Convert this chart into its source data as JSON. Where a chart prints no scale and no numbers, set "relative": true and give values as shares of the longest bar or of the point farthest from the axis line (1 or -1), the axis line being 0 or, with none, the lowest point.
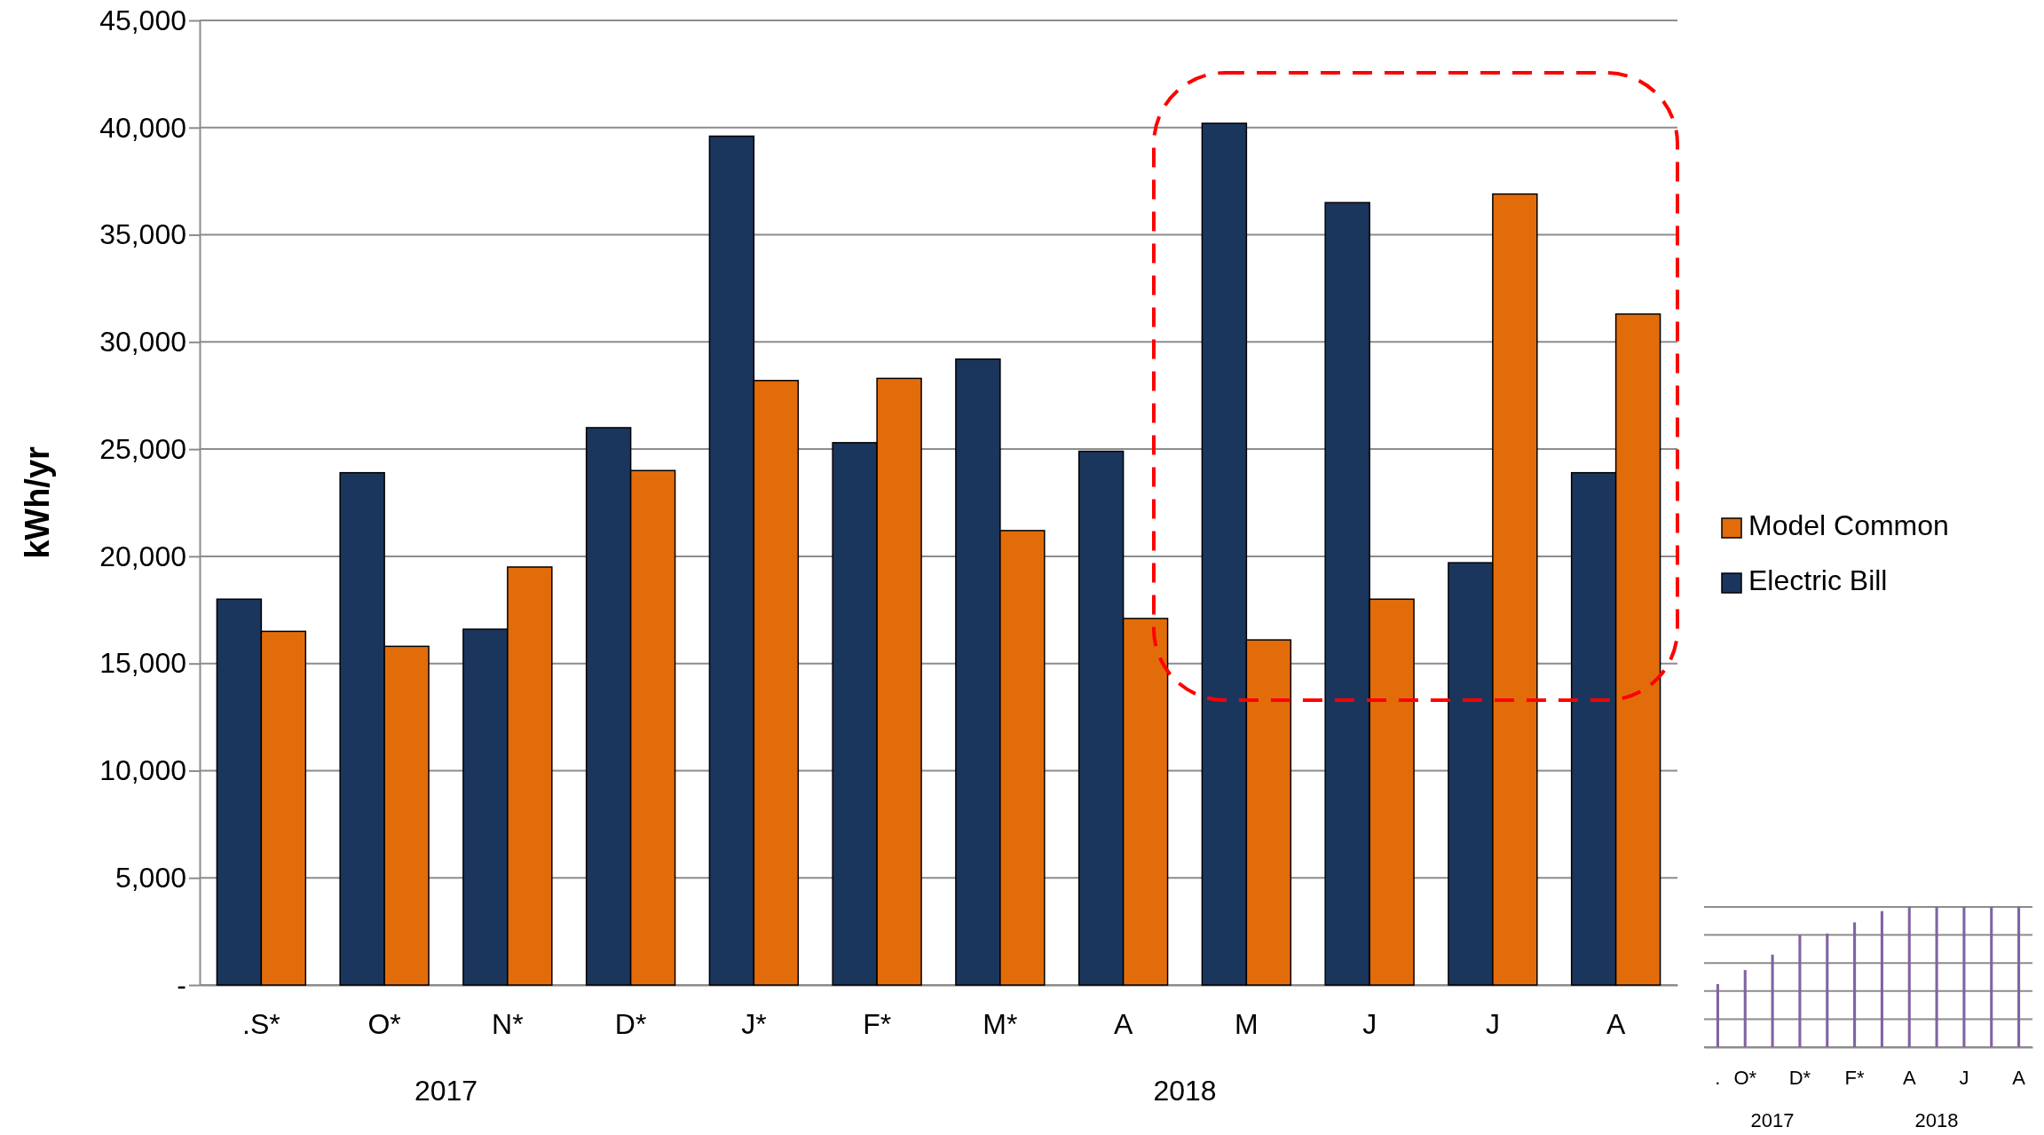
{
  "chart_data": [
    {
      "type": "bar",
      "ylabel": "kWh/yr",
      "categories": [
        ".S*",
        "O*",
        "N*",
        "D*",
        "J*",
        "F*",
        "M*",
        "A",
        "M",
        "J",
        "J",
        "A"
      ],
      "series": [
        {
          "name": "Electric Bill",
          "color": "#1b365d",
          "values": [
            18000,
            23900,
            16600,
            26000,
            39600,
            25300,
            29200,
            24900,
            40200,
            36500,
            19700,
            23900
          ]
        },
        {
          "name": "Model Common",
          "color": "#e36c0a",
          "values": [
            16500,
            15800,
            19500,
            24000,
            28200,
            28300,
            21200,
            17100,
            16100,
            18000,
            36900,
            31300
          ]
        }
      ],
      "ylim": [
        0,
        45000
      ],
      "yticks": [
        {
          "value": 0,
          "label": "-"
        },
        {
          "value": 5000,
          "label": "5,000"
        },
        {
          "value": 10000,
          "label": "10,000"
        },
        {
          "value": 15000,
          "label": "15,000"
        },
        {
          "value": 20000,
          "label": "20,000"
        },
        {
          "value": 25000,
          "label": "25,000"
        },
        {
          "value": 30000,
          "label": "30,000"
        },
        {
          "value": 35000,
          "label": "35,000"
        },
        {
          "value": 40000,
          "label": "40,000"
        },
        {
          "value": 45000,
          "label": "45,000"
        }
      ],
      "grid": "y",
      "legend": "right",
      "annotations": [
        "2017",
        "2018"
      ]
    },
    {
      "type": "bar",
      "relative": true,
      "categories": [
        ".",
        "O*",
        null,
        "D*",
        null,
        "F*",
        null,
        "A",
        null,
        "J",
        null,
        "A"
      ],
      "series": [
        {
          "color": "#8064a2",
          "values": [
            0.45,
            0.55,
            0.66,
            0.8,
            0.81,
            0.89,
            0.97,
            1,
            1,
            1,
            1,
            1
          ]
        }
      ],
      "grid": "y",
      "annotations": [
        "2017",
        "2018"
      ]
    }
  ]
}
